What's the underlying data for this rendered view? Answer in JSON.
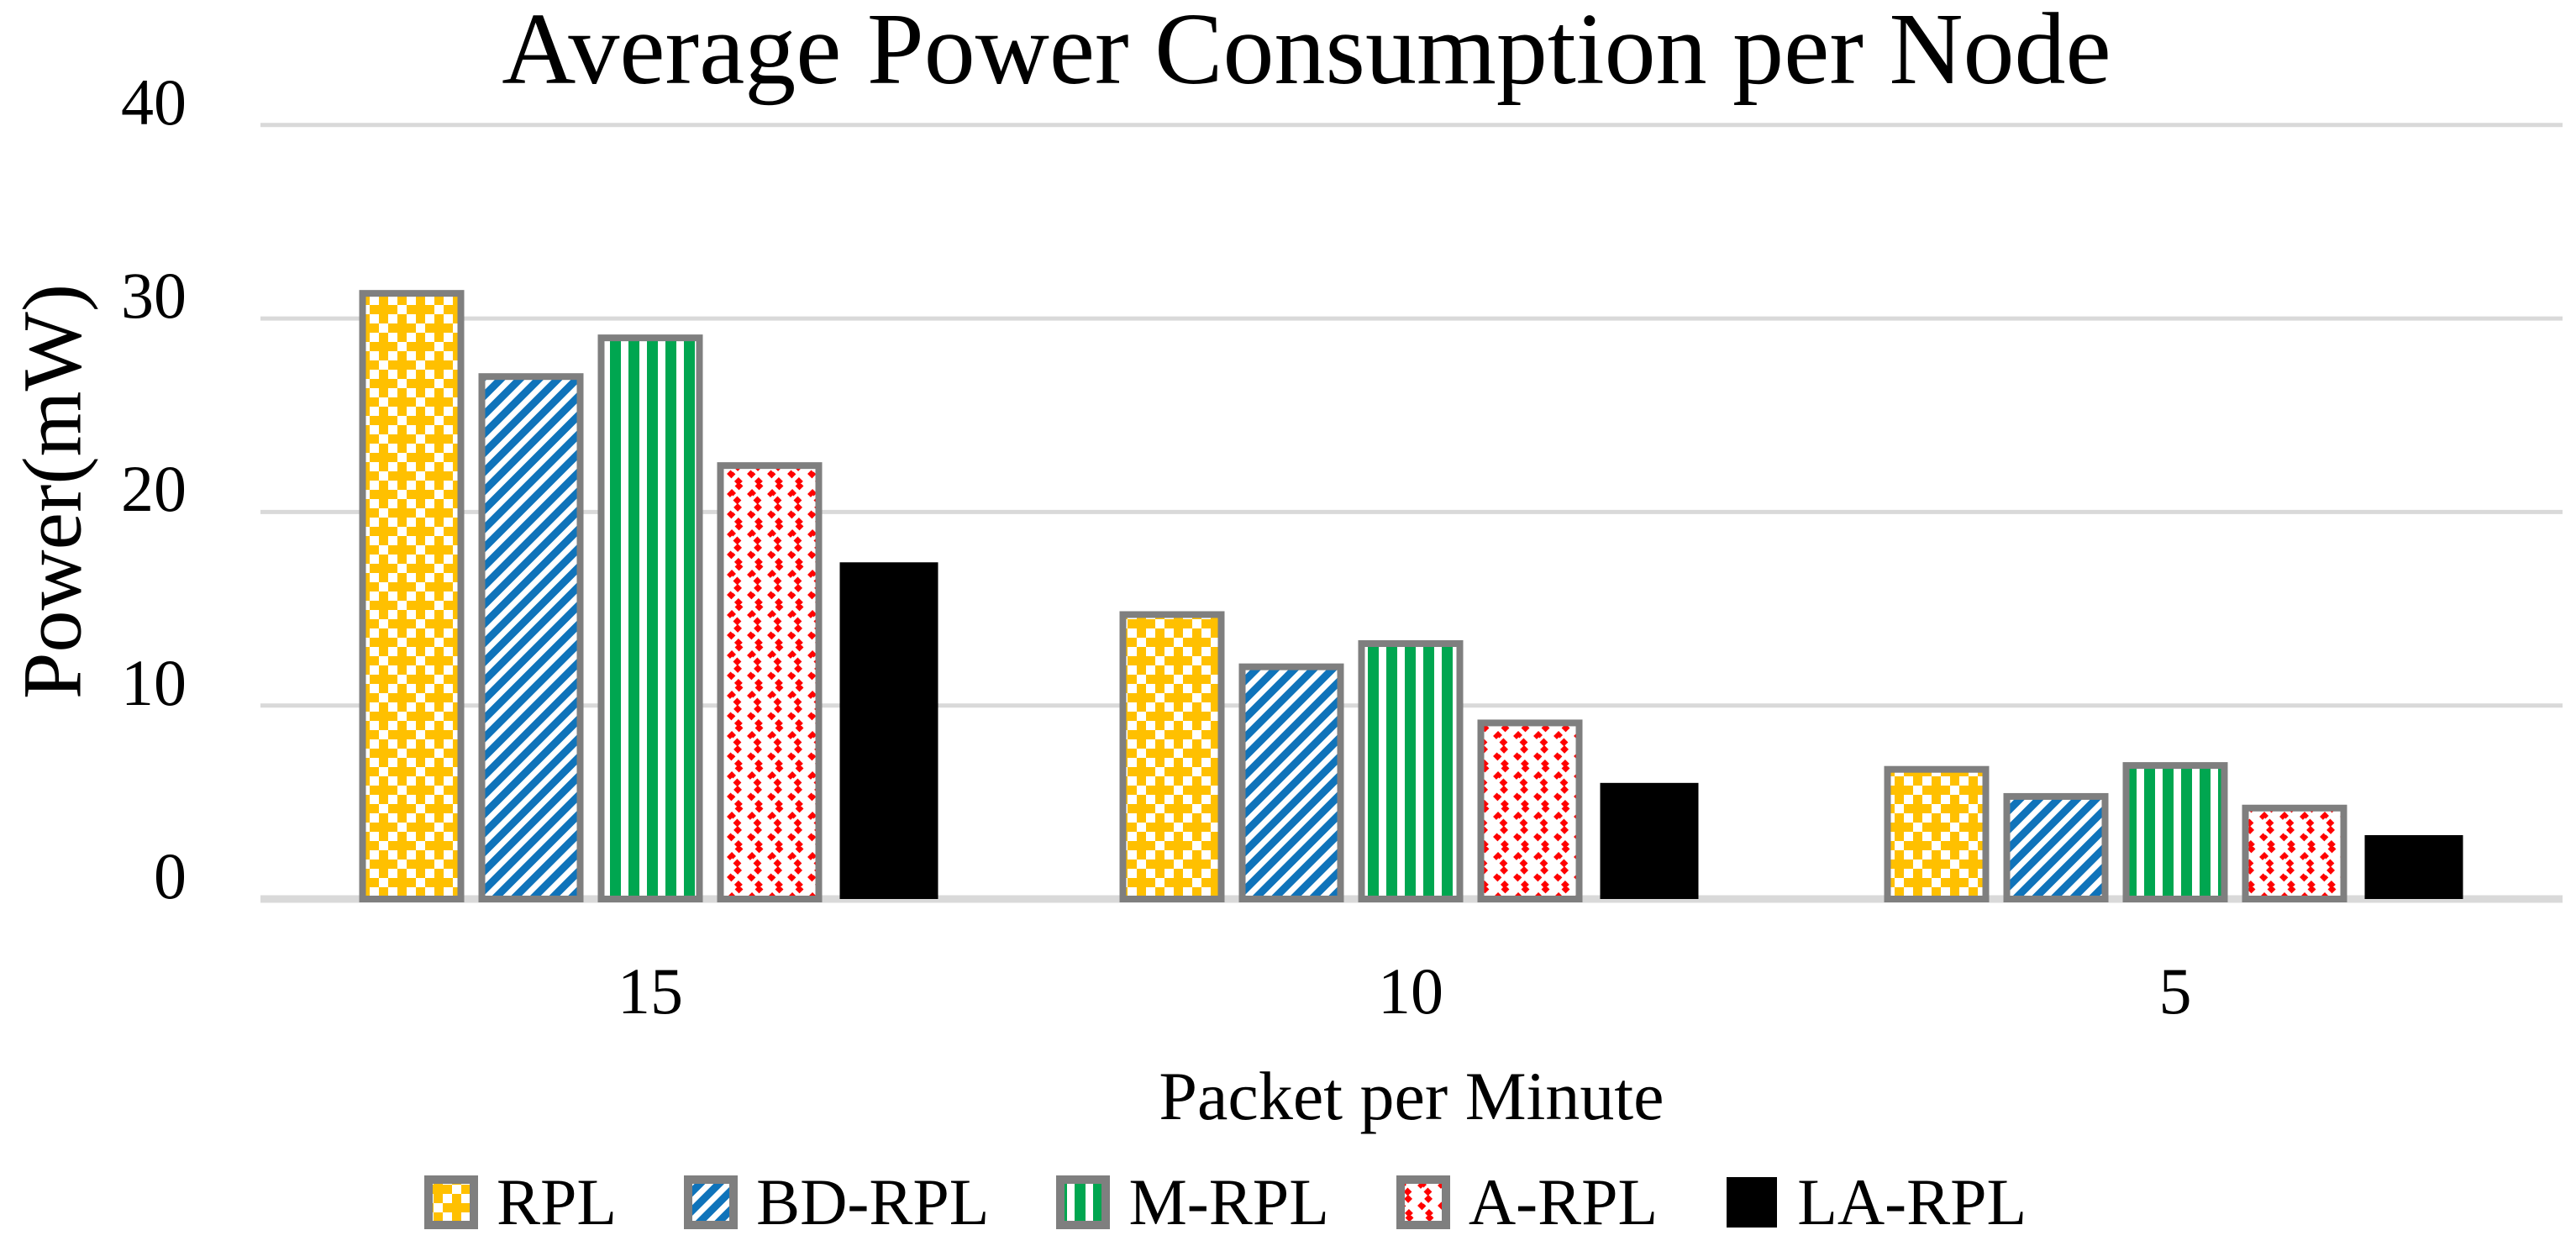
{
  "chart_data": {
    "type": "bar",
    "title": "Average Power Consumption per Node",
    "xlabel": "Packet per Minute",
    "ylabel": "Power(mW)",
    "categories": [
      "15",
      "10",
      "5"
    ],
    "series": [
      {
        "name": "RPL",
        "values": [
          31.3,
          14.7,
          6.7
        ],
        "color": "#FFC000",
        "pattern": "checker-plus",
        "border": true
      },
      {
        "name": "BD-RPL",
        "values": [
          27.0,
          12.0,
          5.3
        ],
        "color": "#0F73BA",
        "pattern": "diagonal-stripes",
        "border": true
      },
      {
        "name": "M-RPL",
        "values": [
          29.0,
          13.2,
          6.9
        ],
        "color": "#00A650",
        "pattern": "vertical-stripes",
        "border": true
      },
      {
        "name": "A-RPL",
        "values": [
          22.4,
          9.1,
          4.7
        ],
        "color": "#FF0000",
        "pattern": "zigzag",
        "border": true
      },
      {
        "name": "LA-RPL",
        "values": [
          17.4,
          6.0,
          3.3
        ],
        "color": "#000000",
        "pattern": "solid",
        "border": false
      }
    ],
    "y_ticks": [
      0,
      10,
      20,
      30,
      40
    ],
    "ylim": [
      0,
      40
    ],
    "grid": true,
    "gridline_color": "#D9D9D9",
    "bar_border_color": "#7F7F7F",
    "legend_position": "bottom",
    "legend": [
      "RPL",
      "BD-RPL",
      "M-RPL",
      "A-RPL",
      "LA-RPL"
    ]
  }
}
